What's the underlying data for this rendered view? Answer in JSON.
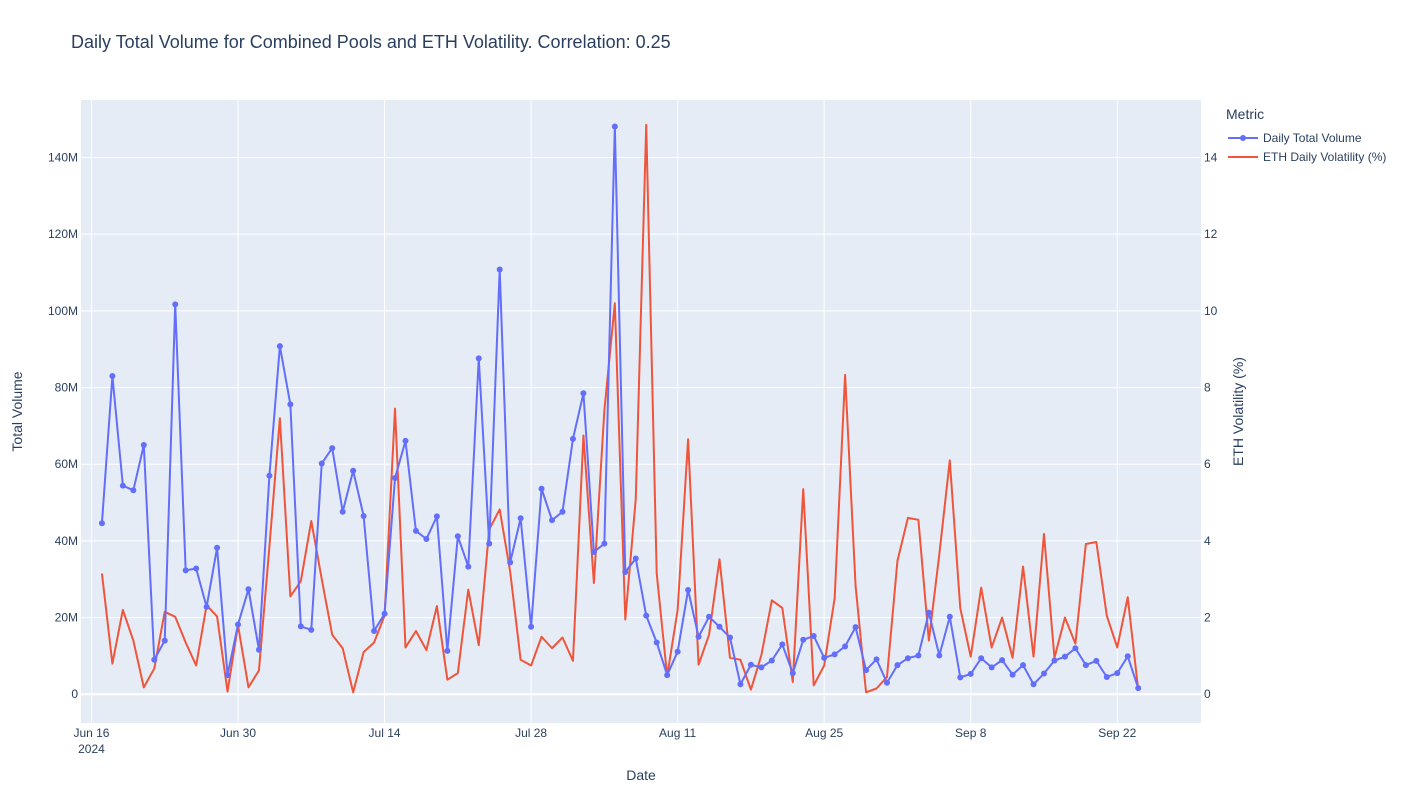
{
  "colors": {
    "volume": "#636efa",
    "volatility": "#ef553b",
    "plot_bg": "#e5ecf6",
    "grid": "#ffffff",
    "text": "#2a3f5f"
  },
  "legend": {
    "title": "Metric",
    "items": [
      {
        "label": "Daily Total Volume",
        "marker": "line+dot"
      },
      {
        "label": "ETH Daily Volatility (%)",
        "marker": "line"
      }
    ]
  },
  "chart_data": {
    "type": "line",
    "title": "Daily Total Volume for Combined Pools and ETH Volatility. Correlation: 0.25",
    "xlabel": "Date",
    "ylabel": "Total Volume",
    "y2label": "ETH Volatility (%)",
    "x_ticks": [
      {
        "date": "2024-06-16",
        "label": "Jun 16",
        "sublabel": "2024"
      },
      {
        "date": "2024-06-30",
        "label": "Jun 30"
      },
      {
        "date": "2024-07-14",
        "label": "Jul 14"
      },
      {
        "date": "2024-07-28",
        "label": "Jul 28"
      },
      {
        "date": "2024-08-11",
        "label": "Aug 11"
      },
      {
        "date": "2024-08-25",
        "label": "Aug 25"
      },
      {
        "date": "2024-09-08",
        "label": "Sep 8"
      },
      {
        "date": "2024-09-22",
        "label": "Sep 22"
      }
    ],
    "xlim": [
      "2024-06-15",
      "2024-09-30"
    ],
    "y_ticks": [
      {
        "value": 0,
        "label": "0"
      },
      {
        "value": 20000000,
        "label": "20M"
      },
      {
        "value": 40000000,
        "label": "40M"
      },
      {
        "value": 60000000,
        "label": "60M"
      },
      {
        "value": 80000000,
        "label": "80M"
      },
      {
        "value": 100000000,
        "label": "100M"
      },
      {
        "value": 120000000,
        "label": "120M"
      },
      {
        "value": 140000000,
        "label": "140M"
      }
    ],
    "ylim": [
      -7500000,
      155000000
    ],
    "y2_ticks": [
      {
        "value": 0,
        "label": "0"
      },
      {
        "value": 2,
        "label": "2"
      },
      {
        "value": 4,
        "label": "4"
      },
      {
        "value": 6,
        "label": "6"
      },
      {
        "value": 8,
        "label": "8"
      },
      {
        "value": 10,
        "label": "10"
      },
      {
        "value": 12,
        "label": "12"
      },
      {
        "value": 14,
        "label": "14"
      }
    ],
    "y2lim": [
      -0.75,
      15.5
    ],
    "grid": true,
    "legend_position": "top-right, outside plot",
    "start_date": "2024-06-17",
    "series": [
      {
        "name": "Daily Total Volume",
        "axis": "left",
        "mode": "lines+markers",
        "values": [
          44600000,
          83000000,
          54400000,
          53200000,
          65000000,
          9000000,
          14000000,
          101700000,
          32300000,
          32800000,
          22800000,
          38200000,
          5000000,
          18200000,
          27400000,
          11600000,
          57000000,
          90800000,
          75600000,
          17700000,
          16800000,
          60200000,
          64200000,
          47600000,
          58300000,
          46500000,
          16500000,
          21000000,
          56400000,
          66100000,
          42600000,
          40500000,
          46400000,
          11300000,
          41200000,
          33300000,
          87600000,
          39300000,
          110800000,
          34400000,
          45900000,
          17600000,
          53600000,
          45400000,
          47600000,
          66600000,
          78500000,
          37100000,
          39300000,
          148100000,
          31900000,
          35400000,
          20500000,
          13500000,
          5000000,
          11100000,
          27200000,
          15000000,
          20200000,
          17600000,
          14800000,
          2600000,
          7700000,
          7000000,
          8800000,
          13000000,
          5500000,
          14200000,
          15200000,
          9500000,
          10400000,
          12500000,
          17500000,
          6300000,
          9100000,
          3000000,
          7600000,
          9400000,
          10100000,
          21300000,
          10100000,
          20200000,
          4400000,
          5300000,
          9400000,
          7000000,
          8900000,
          5100000,
          7600000,
          2600000,
          5400000,
          8800000,
          9800000,
          12000000,
          7600000,
          8700000,
          4500000,
          5500000,
          9900000,
          1600000
        ]
      },
      {
        "name": "ETH Daily Volatility (%)",
        "axis": "right",
        "mode": "lines",
        "values": [
          3.15,
          0.8,
          2.2,
          1.4,
          0.18,
          0.67,
          2.15,
          2.02,
          1.35,
          0.75,
          2.32,
          2.03,
          0.07,
          1.8,
          0.18,
          0.62,
          3.85,
          7.2,
          2.55,
          2.95,
          4.52,
          3.0,
          1.55,
          1.2,
          0.05,
          1.1,
          1.35,
          2.05,
          7.45,
          1.22,
          1.65,
          1.15,
          2.3,
          0.38,
          0.55,
          2.73,
          1.28,
          4.3,
          4.82,
          3.2,
          0.9,
          0.75,
          1.5,
          1.2,
          1.48,
          0.87,
          6.75,
          2.9,
          7.4,
          10.2,
          1.95,
          5.1,
          14.85,
          3.15,
          0.47,
          2.2,
          6.65,
          0.77,
          1.55,
          3.52,
          0.95,
          0.9,
          0.12,
          1.02,
          2.45,
          2.25,
          0.32,
          5.35,
          0.23,
          0.75,
          2.5,
          8.33,
          2.83,
          0.05,
          0.15,
          0.45,
          3.48,
          4.6,
          4.55,
          1.4,
          3.65,
          6.1,
          2.25,
          0.98,
          2.78,
          1.22,
          2.0,
          0.95,
          3.33,
          0.98,
          4.18,
          0.95,
          2.0,
          1.32,
          3.92,
          3.97,
          2.05,
          1.22,
          2.53,
          0.12
        ]
      }
    ]
  }
}
